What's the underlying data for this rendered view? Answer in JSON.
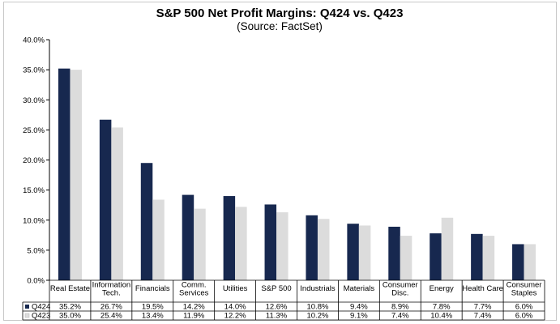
{
  "chart_data": {
    "type": "bar",
    "title": "S&P 500 Net Profit Margins: Q424 vs. Q423",
    "subtitle": "(Source: FactSet)",
    "categories": [
      [
        "Real Estate"
      ],
      [
        "Information",
        "Tech."
      ],
      [
        "Financials"
      ],
      [
        "Comm.",
        "Services"
      ],
      [
        "Utilities"
      ],
      [
        "S&P 500"
      ],
      [
        "Industrials"
      ],
      [
        "Materials"
      ],
      [
        "Consumer",
        "Disc."
      ],
      [
        "Energy"
      ],
      [
        "Health Care"
      ],
      [
        "Consumer",
        "Staples"
      ]
    ],
    "series": [
      {
        "name": "Q424",
        "color": "#17284f",
        "values": [
          35.2,
          26.7,
          19.5,
          14.2,
          14.0,
          12.6,
          10.8,
          9.4,
          8.9,
          7.8,
          7.7,
          6.0
        ],
        "labels": [
          "35.2%",
          "26.7%",
          "19.5%",
          "14.2%",
          "14.0%",
          "12.6%",
          "10.8%",
          "9.4%",
          "8.9%",
          "7.8%",
          "7.7%",
          "6.0%"
        ]
      },
      {
        "name": "Q423",
        "color": "#dcdcdc",
        "values": [
          35.0,
          25.4,
          13.4,
          11.9,
          12.2,
          11.3,
          10.2,
          9.1,
          7.4,
          10.4,
          7.4,
          6.0
        ],
        "labels": [
          "35.0%",
          "25.4%",
          "13.4%",
          "11.9%",
          "12.2%",
          "11.3%",
          "10.2%",
          "9.1%",
          "7.4%",
          "10.4%",
          "7.4%",
          "6.0%"
        ]
      }
    ],
    "ylim": [
      0,
      40
    ],
    "yticks": [
      "0.0%",
      "5.0%",
      "10.0%",
      "15.0%",
      "20.0%",
      "25.0%",
      "30.0%",
      "35.0%",
      "40.0%"
    ],
    "grid": false,
    "legend": "data-table"
  }
}
